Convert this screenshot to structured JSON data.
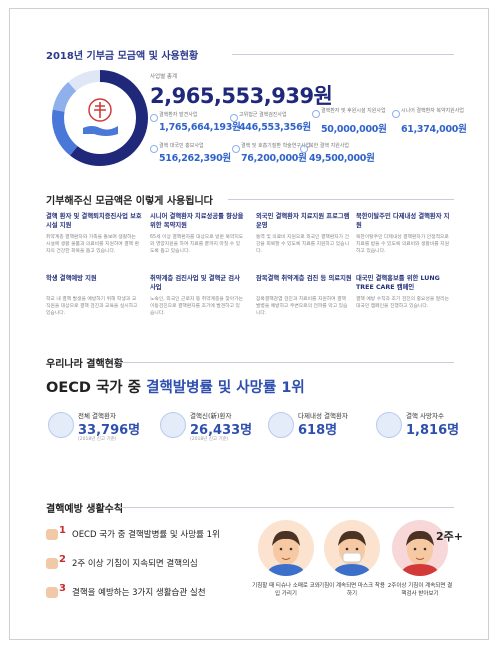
{
  "usage": {
    "title": "2018년 기부금 모금액 및 사용현황",
    "total_label": "사업별 총계",
    "total_value": "2,965,553,939원",
    "items": [
      {
        "label": "결핵환자 발견사업",
        "value": "1,765,664,193원"
      },
      {
        "label": "고위험군 결핵검진사업",
        "value": "446,553,356원"
      },
      {
        "label": "결핵환자 및 후원시설 지원사업",
        "value": "50,000,000원"
      },
      {
        "label": "시니어 결핵환자 복약지원사업",
        "value": "61,374,000원"
      },
      {
        "label": "결핵 대국민 홍보사업",
        "value": "516,262,390원"
      },
      {
        "label": "결핵 및 호흡기질환 학술연구사업",
        "value": "76,200,000원"
      },
      {
        "label": "북한 결핵 지원사업",
        "value": "49,500,000원"
      }
    ]
  },
  "programs": {
    "title": "기부해주신 모금액은 이렇게 사용됩니다",
    "items": [
      {
        "title": "결핵 환자 및 결핵퇴치증진사업 보호시설 지원",
        "text": "취약계층 결핵환자와 가족을 돌보며 생활하는 시설에 생활 물품과 의료비를 지원하여 결핵 환자의 건강한 회복을 돕고 있습니다."
      },
      {
        "title": "시니어 결핵환자 치료성공률 향상을 위한 복약지원",
        "text": "65세 이상 결핵환자를 대상으로 방문 복약지도와 영양지원을 하여 치료를 끝까지 마칠 수 있도록 돕고 있습니다."
      },
      {
        "title": "외국인 결핵환자 치료지원 프로그램 운영",
        "text": "통역 및 의료비 지원으로 외국인 결핵환자가 건강을 회복할 수 있도록 치료를 지원하고 있습니다."
      },
      {
        "title": "북한이탈주민 다제내성 결핵환자 지원",
        "text": "북한이탈주민 다제내성 결핵환자가 안정적으로 치료를 받을 수 있도록 의료비와 생활비를 지원하고 있습니다."
      },
      {
        "title": "학생 결핵예방 지원",
        "text": "학교 내 결핵 발생을 예방하기 위해 학생과 교직원을 대상으로 결핵 검진과 교육을 실시하고 있습니다."
      },
      {
        "title": "취약계층 검진사업 및 결핵균 검사 사업",
        "text": "노숙인, 외국인 근로자 등 취약계층을 찾아가는 이동검진으로 결핵환자를 조기에 발견하고 있습니다."
      },
      {
        "title": "잠복결핵 취약계층 검진 등 의료지원",
        "text": "잠복결핵감염 검진과 치료비를 지원하여 결핵 발병을 예방하고 주변으로의 전파를 막고 있습니다."
      },
      {
        "title": "대국민 결핵홍보를 위한 LUNG TREE CARE 캠페인",
        "text": "결핵 예방 수칙과 조기 검진의 중요성을 알리는 대국민 캠페인을 진행하고 있습니다."
      }
    ]
  },
  "status": {
    "title": "우리나라 결핵현황",
    "headline_prefix": "OECD 국가 중",
    "headline_main": "결핵발병률 및 사망률 1위",
    "stats": [
      {
        "label": "전체 결핵환자",
        "value": "33,796명",
        "note": "(2018년 신고 기준)"
      },
      {
        "label": "결핵신(新)환자",
        "value": "26,433명",
        "note": "(2018년 신고 기준)"
      },
      {
        "label": "다제내성 결핵환자",
        "value": "618명"
      },
      {
        "label": "결핵 사망자수",
        "value": "1,816명"
      }
    ]
  },
  "prevention": {
    "title": "결핵예방 생활수칙",
    "rules": [
      {
        "num": "1",
        "text": "OECD 국가 중 결핵발병률 및 사망률 1위"
      },
      {
        "num": "2",
        "text": "2주 이상 기침이 지속되면 결핵의심"
      },
      {
        "num": "3",
        "text": "결핵을 예방하는 3가지 생활습관 실천"
      }
    ],
    "badge": "2주+",
    "habits": [
      "기침할 때 티슈나 소매로 코와 입 가리기",
      "기침이 계속되면 마스크 착용하기",
      "2주이상 기침이 계속되면 결핵검사 받아보기"
    ]
  }
}
